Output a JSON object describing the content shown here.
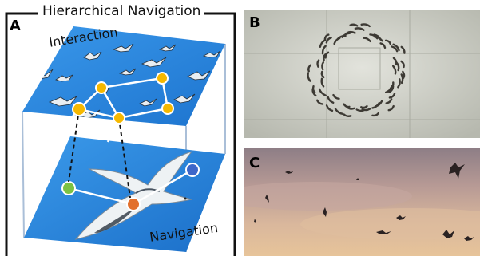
{
  "figure": {
    "title": "Hierarchical Navigation",
    "panel_a": {
      "letter": "A",
      "upper_plane_label": "Interaction",
      "lower_plane_label": "Navigation",
      "node_colors": {
        "interaction": "#f5b800",
        "navigation_orange": "#e2702d",
        "navigation_green": "#7cc243",
        "navigation_blue": "#3d67c9"
      },
      "plane_color": "#2f8be0"
    },
    "panel_b": {
      "letter": "B",
      "subject": "fish school in circular milling pattern"
    },
    "panel_c": {
      "letter": "C",
      "subject": "flock of birds against sunset sky"
    }
  }
}
